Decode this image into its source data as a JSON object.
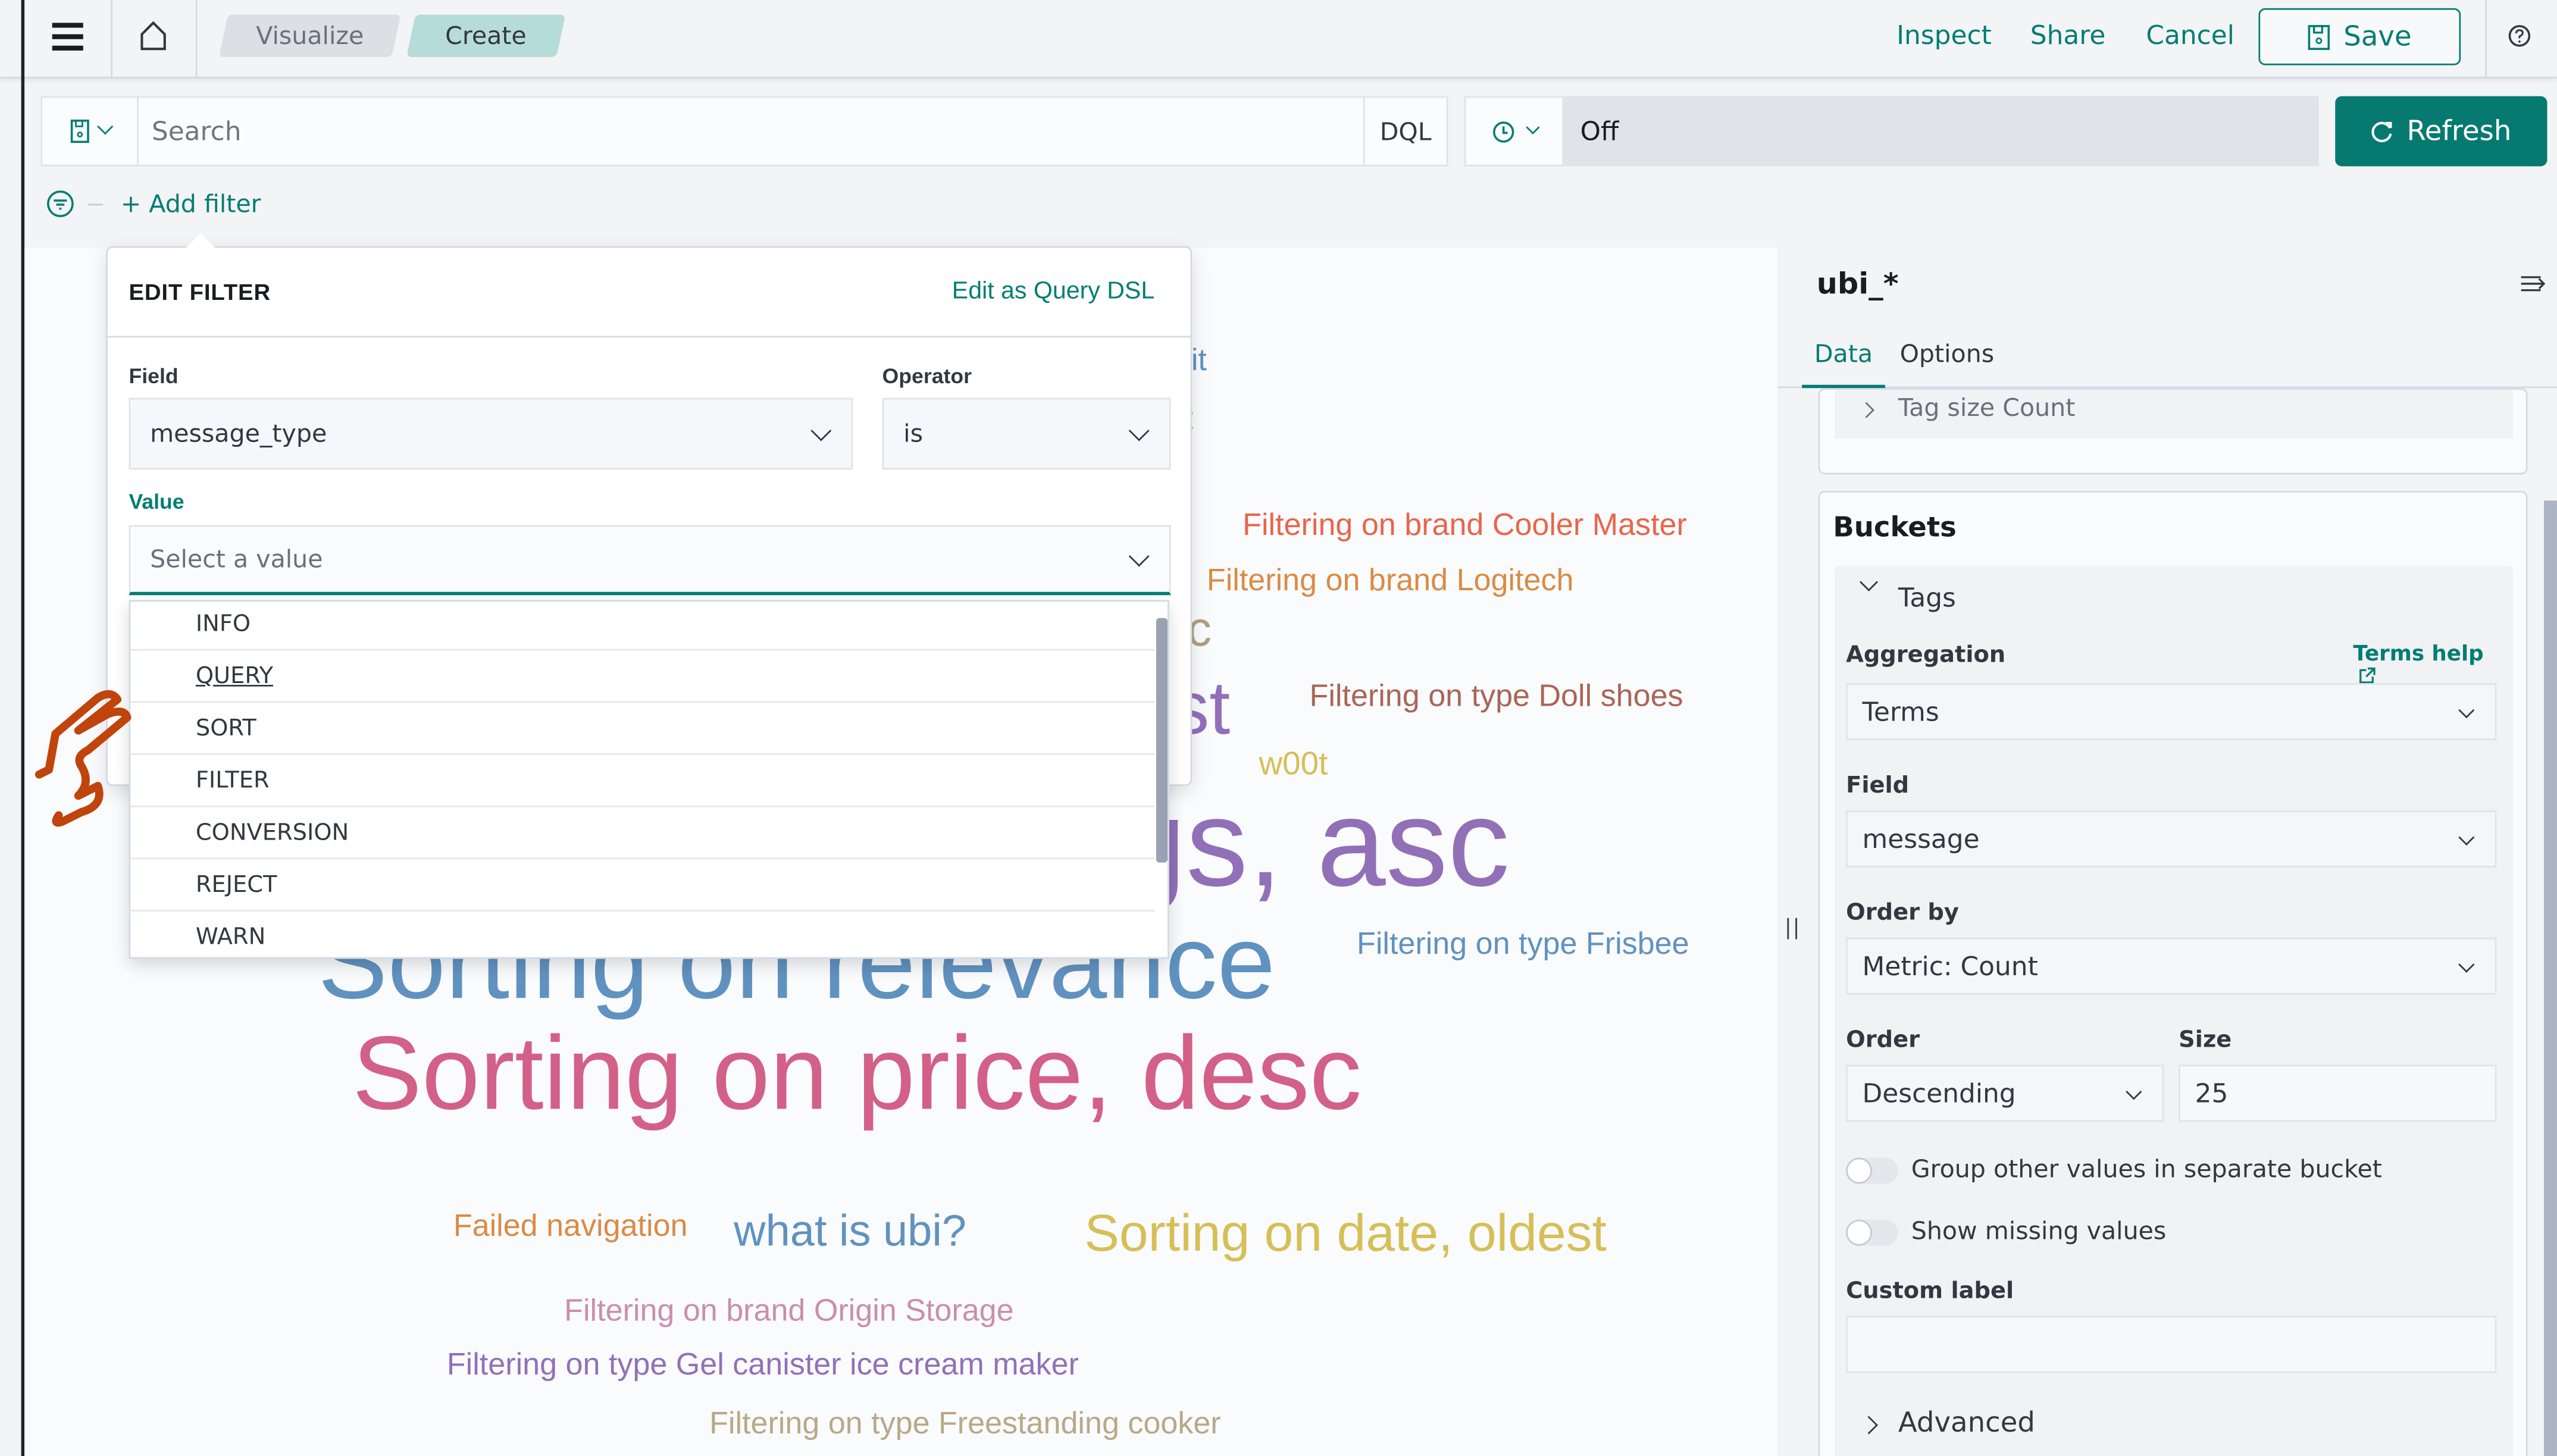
{
  "header": {
    "breadcrumbs": [
      "Visualize",
      "Create"
    ],
    "inspect": "Inspect",
    "share": "Share",
    "cancel": "Cancel",
    "save": "Save"
  },
  "query_bar": {
    "search_placeholder": "Search",
    "language": "DQL",
    "refresh_interval": "Off",
    "refresh": "Refresh"
  },
  "filter_bar": {
    "add_filter": "+ Add filter"
  },
  "edit_filter": {
    "title": "EDIT FILTER",
    "edit_dsl": "Edit as Query DSL",
    "field_label": "Field",
    "field_value": "message_type",
    "operator_label": "Operator",
    "operator_value": "is",
    "value_label": "Value",
    "value_placeholder": "Select a value",
    "options": [
      "INFO",
      "QUERY",
      "SORT",
      "FILTER",
      "CONVERSION",
      "REJECT",
      "WARN"
    ],
    "hovered_option": "QUERY"
  },
  "word_cloud": [
    {
      "text": "kit",
      "color": "#6092c0"
    },
    {
      "text": "et",
      "color": "#d6bf57"
    },
    {
      "text": "Filtering on brand Cooler Master",
      "color": "#e7664c"
    },
    {
      "text": "Filtering on brand Logitech",
      "color": "#da8b45"
    },
    {
      "text": "sc",
      "color": "#b0a080"
    },
    {
      "text": "est",
      "color": "#9170b8"
    },
    {
      "text": "Filtering on type Doll shoes",
      "color": "#aa6556"
    },
    {
      "text": "w00t",
      "color": "#d6bf57"
    },
    {
      "text": "gs, asc",
      "color": "#9170b8"
    },
    {
      "text": "Filtering on type Frisbee",
      "color": "#6092c0"
    },
    {
      "text": "Sorting on relevance",
      "color": "#6092c0"
    },
    {
      "text": "Sorting on price, desc",
      "color": "#d36086"
    },
    {
      "text": "Failed navigation",
      "color": "#da8b45"
    },
    {
      "text": "what is ubi?",
      "color": "#6092c0"
    },
    {
      "text": "Sorting on date, oldest",
      "color": "#d6bf57"
    },
    {
      "text": "Filtering on brand Origin Storage",
      "color": "#ca8eae"
    },
    {
      "text": "Filtering on type Gel canister ice cream maker",
      "color": "#9170b8"
    },
    {
      "text": "Filtering on type Freestanding cooker",
      "color": "#b9a888"
    }
  ],
  "sidebar": {
    "index_pattern": "ubi_*",
    "tabs": [
      "Data",
      "Options"
    ],
    "active_tab": "Data",
    "metric_row": "Tag size Count",
    "buckets_title": "Buckets",
    "bucket_name": "Tags",
    "aggregation_label": "Aggregation",
    "terms_help": "Terms help",
    "aggregation_value": "Terms",
    "field_label": "Field",
    "field_value": "message",
    "order_by_label": "Order by",
    "order_by_value": "Metric: Count",
    "order_label": "Order",
    "order_value": "Descending",
    "size_label": "Size",
    "size_value": "25",
    "group_other": "Group other values in separate bucket",
    "group_other_on": false,
    "show_missing": "Show missing values",
    "show_missing_on": false,
    "custom_label": "Custom label",
    "custom_label_value": "",
    "advanced": "Advanced"
  },
  "colors": {
    "accent": "#017d73",
    "refresh_bg": "#067a70",
    "create_crumb": "#b6dcd9",
    "hand_annotation": "#c0440c"
  }
}
